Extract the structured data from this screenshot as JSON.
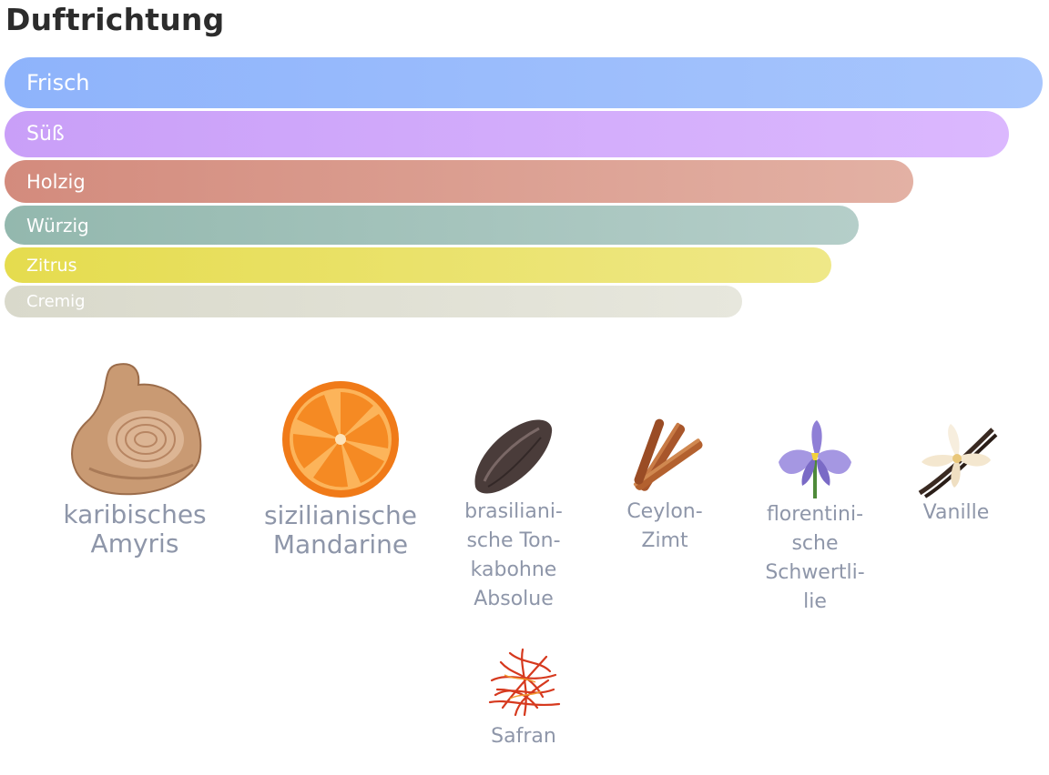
{
  "section": {
    "title": "Duftrichtung"
  },
  "accords": [
    {
      "label": "Frisch",
      "color": "#97b9fc",
      "level": 1.0
    },
    {
      "label": "Süß",
      "color": "#d0a7fa",
      "level": 0.97
    },
    {
      "label": "Holzig",
      "color": "#d99888",
      "level": 0.88
    },
    {
      "label": "Würzig",
      "color": "#a3c2ba",
      "level": 0.82
    },
    {
      "label": "Zitrus",
      "color": "#e8e062",
      "level": 0.8
    },
    {
      "label": "Cremig",
      "color": "#dddcd0",
      "level": 0.71
    }
  ],
  "ingredients": [
    {
      "label": "karibisches\nAmyris",
      "icon": "amyris-wood-icon"
    },
    {
      "label": "sizilianische\nMandarine",
      "icon": "mandarine-slice-icon"
    },
    {
      "label": "brasiliani-\nsche Ton-\nkabohne\nAbsolue",
      "icon": "tonka-bean-icon"
    },
    {
      "label": "Ceylon-\nZimt",
      "icon": "cinnamon-stick-icon"
    },
    {
      "label": "florentini-\nsche\nSchwertli-\nlie",
      "icon": "iris-flower-icon"
    },
    {
      "label": "Vanille",
      "icon": "vanilla-flower-icon"
    },
    {
      "label": "Safran",
      "icon": "saffron-threads-icon"
    }
  ]
}
